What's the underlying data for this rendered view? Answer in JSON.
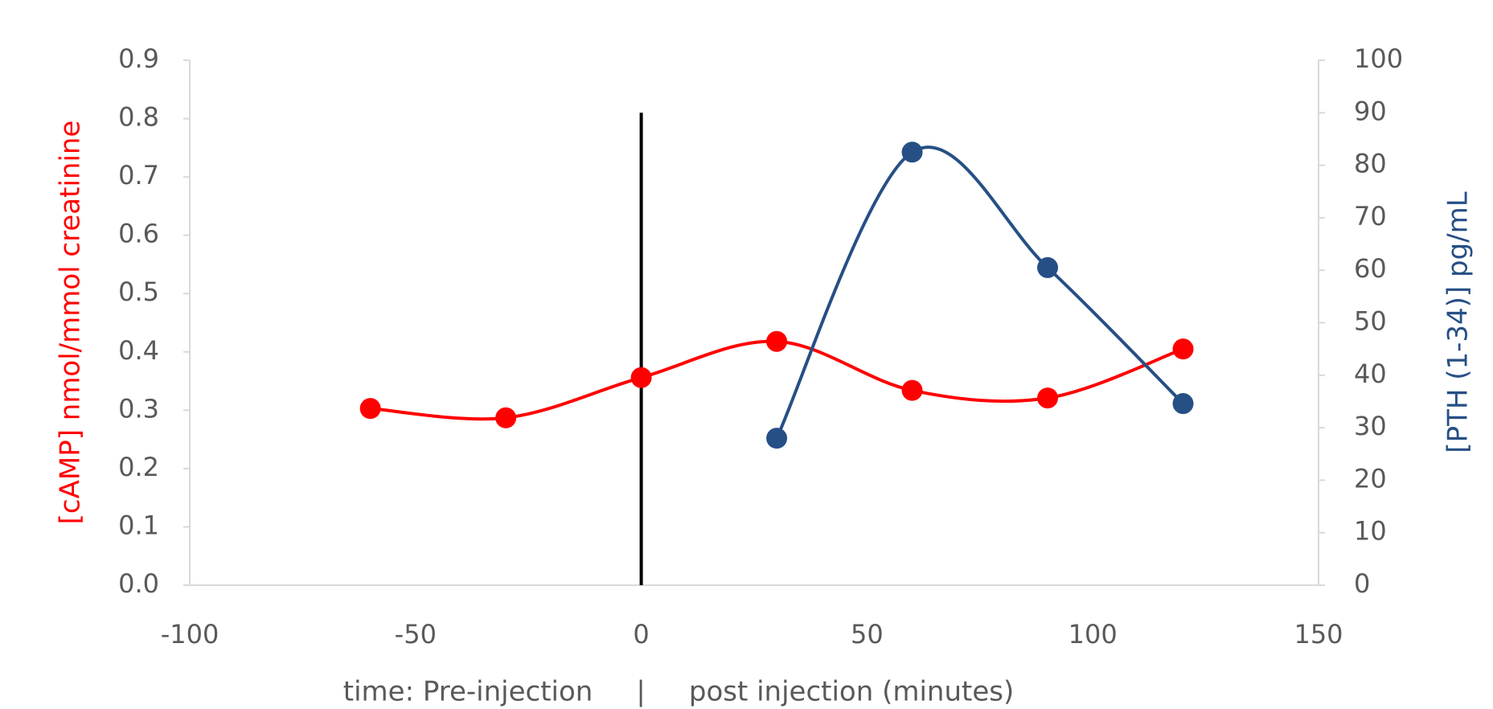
{
  "chart_data": {
    "type": "line",
    "x_label": "time: Pre-injection     |     post injection (minutes)",
    "y_label": "[cAMP] nmol/mmol creatinine",
    "y2_label": "[PTH (1-34)] pg/mL",
    "smooth": true,
    "series": [
      {
        "color": "#ff0000",
        "x": [
          -60,
          -30,
          0,
          30,
          60,
          90,
          120
        ],
        "values": [
          0.303,
          0.287,
          0.356,
          0.418,
          0.334,
          0.321,
          0.405
        ]
      },
      {
        "color": "#264f85",
        "axis": "y2",
        "x": [
          30,
          60,
          90,
          120
        ],
        "values": [
          28,
          82.5,
          60.5,
          34.6
        ]
      }
    ],
    "reference_line": {
      "color": "#000000",
      "x": 0,
      "values": [
        0,
        0.81
      ]
    },
    "xlim": [
      -100,
      150
    ],
    "xticks": [
      -100,
      -50,
      0,
      50,
      100,
      150
    ],
    "ylim": [
      0,
      0.9
    ],
    "yticks": [
      {
        "value": 0,
        "label": "0.0"
      },
      0.1,
      0.2,
      0.3,
      0.4,
      0.5,
      0.6,
      0.7,
      0.8,
      0.9
    ],
    "y2lim": [
      0,
      100
    ],
    "y2ticks": [
      0,
      10,
      20,
      30,
      40,
      50,
      60,
      70,
      80,
      90,
      100
    ],
    "grid": false
  }
}
